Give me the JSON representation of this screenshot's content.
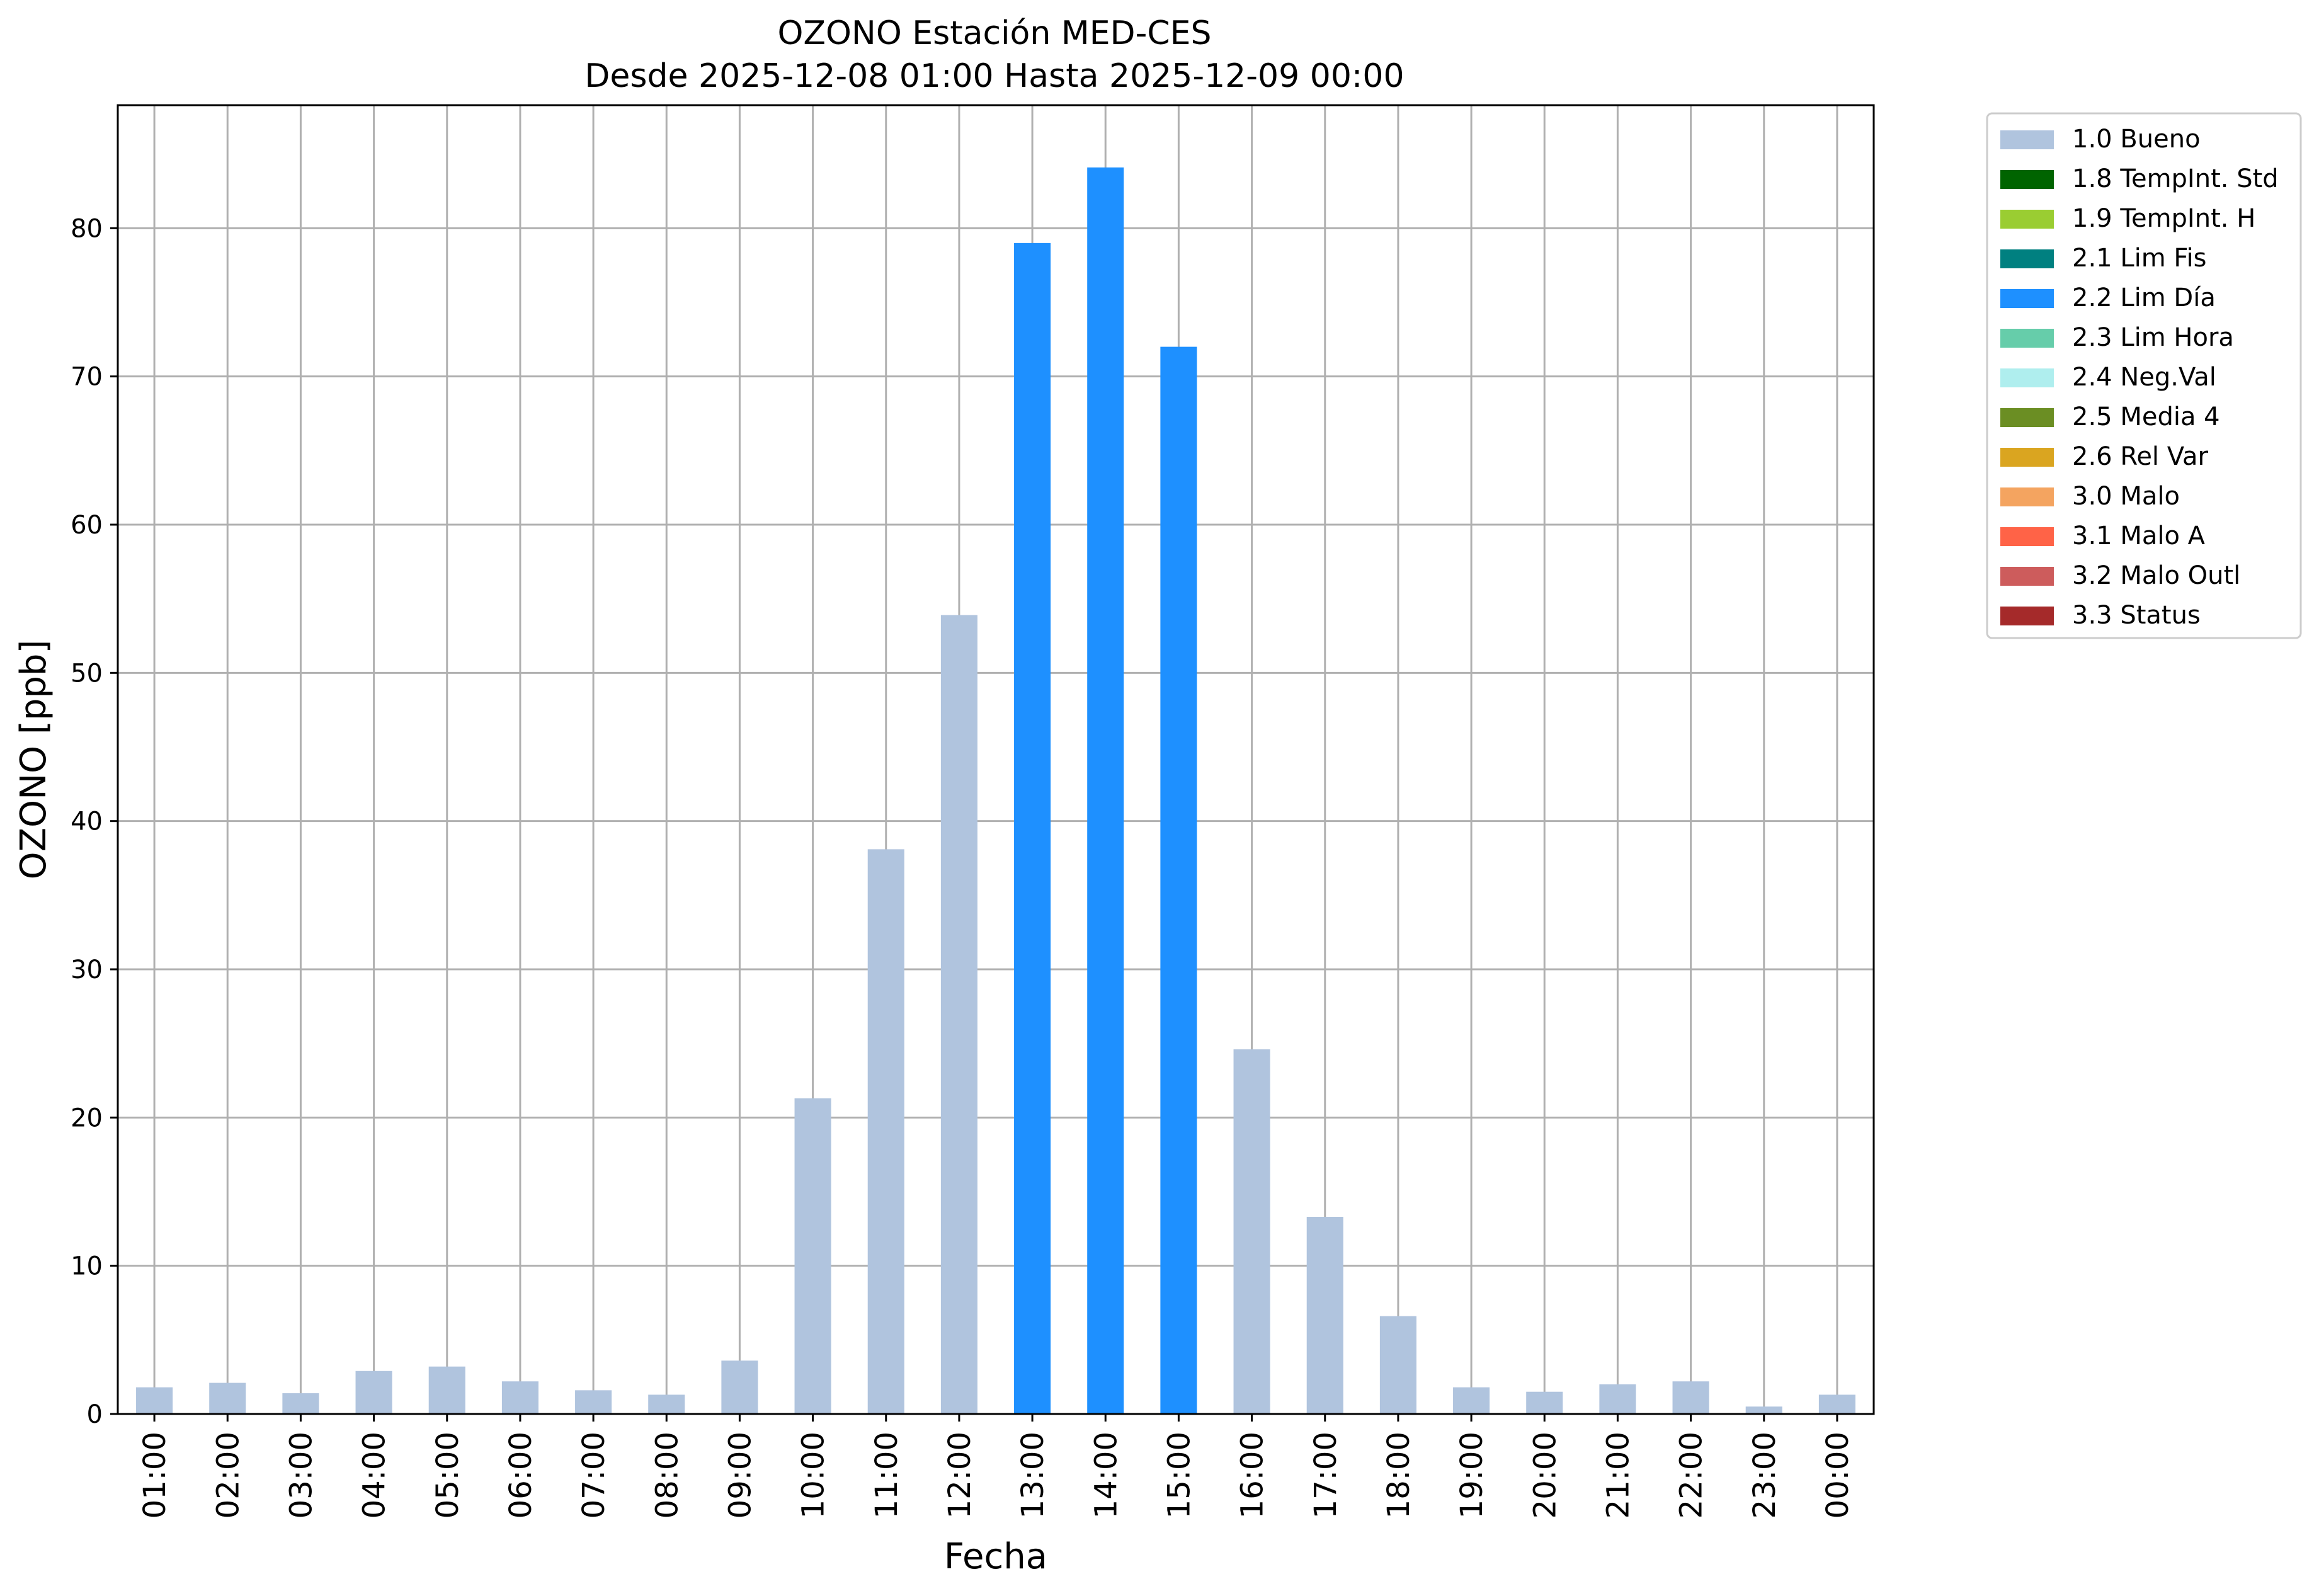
{
  "chart_data": {
    "type": "bar",
    "title": "OZONO Estación MED-CES",
    "subtitle": "Desde 2025-12-08 01:00 Hasta 2025-12-09 00:00",
    "xlabel": "Fecha",
    "ylabel": "OZONO [ppb]",
    "ylim": [
      0,
      88.3
    ],
    "yticks": [
      0,
      10,
      20,
      30,
      40,
      50,
      60,
      70,
      80
    ],
    "grid": true,
    "legend_position": "outside-top-right",
    "categories": [
      "01:00",
      "02:00",
      "03:00",
      "04:00",
      "05:00",
      "06:00",
      "07:00",
      "08:00",
      "09:00",
      "10:00",
      "11:00",
      "12:00",
      "13:00",
      "14:00",
      "15:00",
      "16:00",
      "17:00",
      "18:00",
      "19:00",
      "20:00",
      "21:00",
      "22:00",
      "23:00",
      "00:00"
    ],
    "values": [
      1.8,
      2.1,
      1.4,
      2.9,
      3.2,
      2.2,
      1.6,
      1.3,
      3.6,
      21.3,
      38.1,
      53.9,
      79.0,
      84.1,
      72.0,
      24.6,
      13.3,
      6.6,
      1.8,
      1.5,
      2.0,
      2.2,
      0.5,
      1.3
    ],
    "flags": [
      "1.0 Bueno",
      "1.0 Bueno",
      "1.0 Bueno",
      "1.0 Bueno",
      "1.0 Bueno",
      "1.0 Bueno",
      "1.0 Bueno",
      "1.0 Bueno",
      "1.0 Bueno",
      "1.0 Bueno",
      "1.0 Bueno",
      "1.0 Bueno",
      "2.2 Lim Día",
      "2.2 Lim Día",
      "2.2 Lim Día",
      "1.0 Bueno",
      "1.0 Bueno",
      "1.0 Bueno",
      "1.0 Bueno",
      "1.0 Bueno",
      "1.0 Bueno",
      "1.0 Bueno",
      "1.0 Bueno",
      "1.0 Bueno"
    ],
    "legend": [
      {
        "label": "1.0 Bueno",
        "color": "#b0c4de"
      },
      {
        "label": "1.8 TempInt. Std",
        "color": "#006400"
      },
      {
        "label": "1.9 TempInt. H",
        "color": "#9acd32"
      },
      {
        "label": "2.1 Lim Fis",
        "color": "#008080"
      },
      {
        "label": "2.2 Lim Día",
        "color": "#1e90ff"
      },
      {
        "label": "2.3 Lim Hora",
        "color": "#66cdaa"
      },
      {
        "label": "2.4 Neg.Val",
        "color": "#afeeee"
      },
      {
        "label": "2.5 Media 4",
        "color": "#6b8e23"
      },
      {
        "label": "2.6 Rel Var",
        "color": "#daa520"
      },
      {
        "label": "3.0 Malo",
        "color": "#f4a460"
      },
      {
        "label": "3.1 Malo A",
        "color": "#ff6347"
      },
      {
        "label": "3.2 Malo Outl",
        "color": "#cd5c5c"
      },
      {
        "label": "3.3 Status",
        "color": "#a52a2a"
      }
    ],
    "grid_color": "#b0b0b0"
  }
}
